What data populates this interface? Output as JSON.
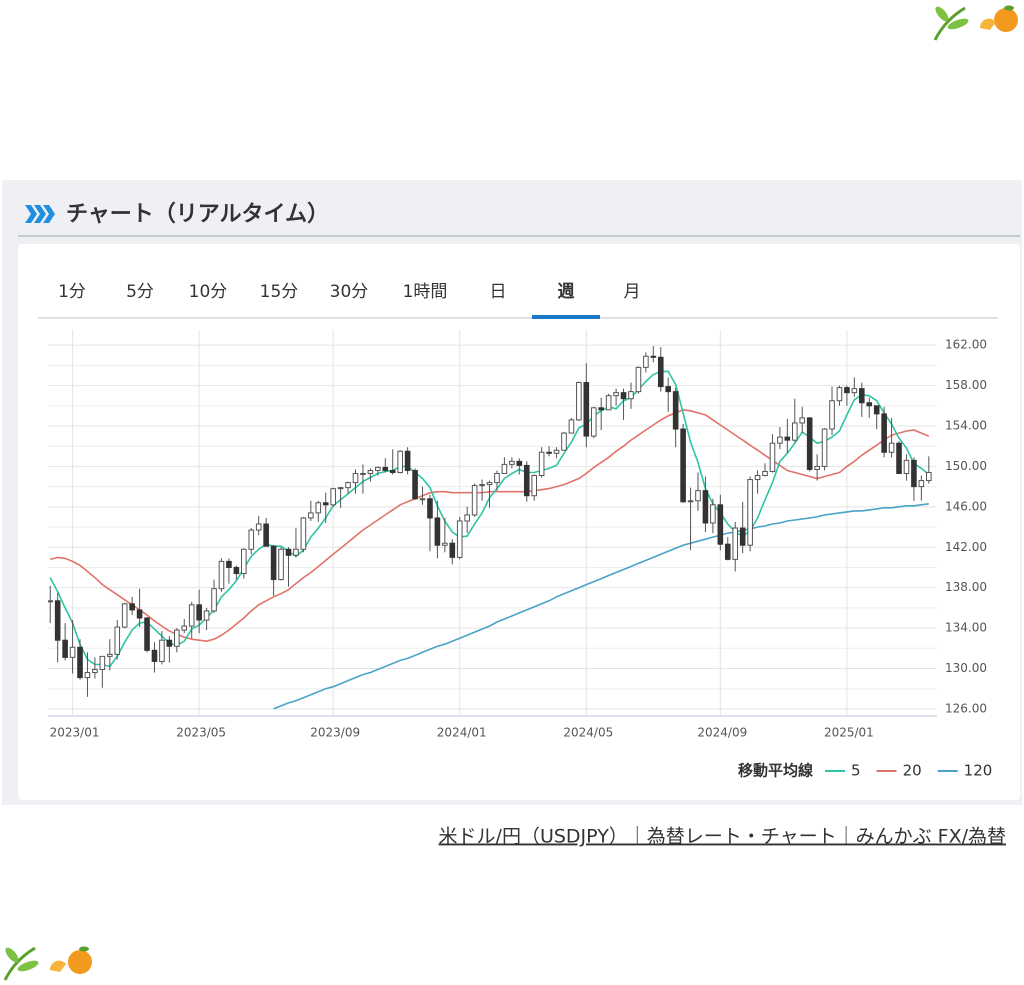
{
  "header": {
    "title": "チャート（リアルタイム）"
  },
  "tabs": {
    "items": [
      "1分",
      "5分",
      "10分",
      "15分",
      "30分",
      "1時間",
      "日",
      "週",
      "月"
    ],
    "active": 7
  },
  "chart_data": {
    "type": "candlestick",
    "open": [
      136.6,
      136.7,
      132.8,
      131.1,
      132.1,
      129.1,
      129.6,
      129.9,
      131.2,
      131.4,
      134.1,
      136.4,
      135.8,
      135.0,
      131.8,
      130.7,
      132.8,
      132.2,
      133.8,
      134.2,
      136.3,
      134.8,
      135.7,
      137.9,
      140.6,
      140.0,
      139.4,
      141.8,
      143.7,
      144.3,
      142.1,
      138.8,
      141.8,
      141.2,
      141.8,
      144.9,
      145.4,
      146.4,
      146.2,
      147.8,
      147.9,
      148.4,
      149.3,
      149.3,
      149.6,
      149.9,
      149.6,
      149.4,
      151.5,
      149.6,
      146.8,
      146.8,
      144.9,
      142.2,
      142.4,
      141.0,
      144.6,
      145.2,
      148.1,
      148.2,
      148.4,
      149.3,
      150.2,
      150.5,
      150.1,
      147.1,
      149.1,
      151.4,
      151.3,
      151.6,
      153.3,
      154.6,
      158.3,
      153.0,
      155.8,
      155.6,
      157.0,
      157.3,
      156.7,
      157.4,
      159.8,
      160.9,
      160.8,
      157.9,
      157.4,
      153.7,
      146.5,
      146.6,
      147.6,
      144.4,
      146.2,
      142.3,
      140.8,
      143.9,
      142.2,
      148.7,
      149.1,
      149.5,
      152.3,
      152.9,
      152.6,
      154.3,
      154.8,
      149.7,
      150.0,
      153.7,
      156.5,
      157.8,
      157.3,
      157.7,
      156.3,
      156.0,
      155.2,
      151.4,
      152.3,
      149.3,
      150.6,
      148.0,
      148.6
    ],
    "high": [
      138.2,
      137.5,
      134.5,
      134.8,
      132.9,
      131.6,
      131.1,
      131.2,
      132.9,
      134.8,
      136.5,
      137.1,
      137.9,
      135.1,
      132.6,
      133.7,
      133.2,
      134.0,
      134.9,
      136.6,
      137.8,
      136.0,
      138.8,
      140.9,
      140.9,
      140.2,
      141.9,
      143.9,
      145.1,
      144.9,
      142.2,
      142.0,
      142.0,
      143.9,
      145.0,
      146.6,
      146.6,
      147.4,
      147.9,
      147.9,
      148.5,
      149.7,
      150.2,
      149.8,
      150.0,
      150.8,
      151.7,
      151.6,
      151.9,
      149.8,
      148.0,
      147.2,
      146.6,
      144.9,
      142.8,
      145.0,
      146.0,
      148.3,
      148.7,
      148.6,
      149.6,
      150.9,
      150.9,
      150.8,
      150.5,
      149.2,
      151.9,
      152.0,
      151.9,
      153.4,
      154.8,
      158.4,
      160.2,
      155.9,
      156.8,
      157.2,
      157.7,
      157.7,
      158.3,
      159.9,
      161.3,
      161.9,
      161.8,
      158.8,
      157.8,
      154.2,
      147.9,
      149.4,
      149.0,
      146.8,
      147.2,
      143.0,
      144.5,
      146.5,
      149.0,
      149.6,
      150.3,
      153.2,
      153.9,
      154.7,
      156.7,
      155.9,
      154.9,
      151.2,
      153.8,
      157.9,
      158.0,
      158.0,
      158.8,
      158.3,
      156.8,
      156.0,
      155.9,
      154.8,
      152.5,
      151.2,
      150.9,
      149.1,
      151.0
    ],
    "low": [
      134.5,
      130.6,
      130.8,
      129.5,
      128.9,
      127.2,
      129.0,
      128.1,
      129.8,
      130.9,
      134.0,
      135.3,
      134.1,
      131.6,
      129.6,
      130.4,
      130.6,
      131.6,
      133.5,
      133.0,
      133.5,
      133.8,
      135.5,
      137.6,
      138.4,
      138.8,
      138.9,
      141.3,
      143.2,
      142.1,
      137.2,
      138.7,
      138.1,
      141.0,
      141.5,
      144.6,
      144.5,
      144.4,
      146.0,
      145.9,
      147.3,
      147.3,
      147.3,
      148.5,
      149.1,
      149.4,
      149.2,
      149.3,
      149.2,
      146.7,
      146.2,
      141.6,
      140.9,
      141.5,
      140.3,
      140.8,
      143.4,
      145.0,
      146.6,
      145.9,
      147.6,
      149.3,
      149.8,
      149.2,
      146.5,
      146.6,
      148.9,
      151.0,
      150.8,
      151.6,
      153.6,
      154.5,
      151.9,
      152.8,
      153.6,
      155.6,
      156.0,
      154.6,
      155.7,
      157.2,
      159.3,
      160.3,
      157.4,
      155.4,
      151.9,
      146.4,
      141.7,
      145.6,
      143.5,
      143.4,
      141.7,
      140.7,
      139.6,
      141.4,
      141.6,
      147.3,
      149.0,
      149.4,
      151.7,
      151.3,
      152.4,
      153.3,
      149.5,
      148.6,
      149.6,
      153.1,
      156.0,
      156.0,
      156.9,
      154.9,
      154.8,
      153.7,
      150.9,
      150.9,
      149.3,
      148.6,
      146.6,
      146.6,
      148.3
    ],
    "close": [
      136.7,
      132.8,
      131.1,
      132.1,
      129.1,
      129.6,
      129.9,
      131.2,
      131.4,
      134.1,
      136.4,
      135.8,
      135.0,
      131.8,
      130.7,
      132.8,
      132.2,
      133.8,
      134.2,
      136.3,
      134.8,
      135.7,
      137.9,
      140.6,
      140.0,
      139.4,
      141.8,
      143.7,
      144.3,
      142.1,
      138.8,
      141.8,
      141.2,
      141.8,
      144.9,
      145.4,
      146.4,
      146.2,
      147.8,
      147.9,
      148.4,
      149.3,
      149.3,
      149.6,
      149.9,
      149.6,
      149.4,
      151.5,
      149.6,
      146.8,
      146.8,
      144.9,
      142.2,
      142.4,
      141.0,
      144.6,
      145.2,
      148.1,
      148.2,
      148.4,
      149.3,
      150.2,
      150.5,
      150.1,
      147.1,
      149.1,
      151.4,
      151.3,
      151.6,
      153.3,
      154.6,
      158.3,
      153.0,
      155.8,
      155.6,
      157.0,
      157.3,
      156.7,
      157.4,
      159.8,
      160.9,
      160.8,
      157.9,
      157.4,
      153.7,
      146.5,
      146.6,
      147.6,
      144.4,
      146.2,
      142.3,
      140.8,
      143.9,
      142.2,
      148.7,
      149.1,
      149.5,
      152.3,
      152.9,
      152.6,
      154.3,
      154.8,
      149.7,
      150.0,
      153.7,
      156.5,
      157.8,
      157.3,
      157.7,
      156.3,
      156.0,
      155.2,
      151.4,
      152.3,
      149.3,
      150.6,
      148.0,
      148.6,
      149.4
    ],
    "legend_title": "移動平均線",
    "series": [
      {
        "name": "5",
        "color": "#2ec4a6",
        "values": [
          139.0,
          137.6,
          136.0,
          134.5,
          132.4,
          130.9,
          130.4,
          130.4,
          130.2,
          131.2,
          132.6,
          133.8,
          134.5,
          134.6,
          133.9,
          133.2,
          132.5,
          132.3,
          132.7,
          133.9,
          134.3,
          135.0,
          135.8,
          137.1,
          137.8,
          138.7,
          139.9,
          141.1,
          141.8,
          142.3,
          142.1,
          142.1,
          141.6,
          141.1,
          141.7,
          143.0,
          143.9,
          144.9,
          146.1,
          146.7,
          147.3,
          147.9,
          148.5,
          148.9,
          149.3,
          149.5,
          149.6,
          150.0,
          150.0,
          149.4,
          148.8,
          147.9,
          146.1,
          144.6,
          143.5,
          143.0,
          143.1,
          144.3,
          145.4,
          146.9,
          147.8,
          148.8,
          149.3,
          149.7,
          149.4,
          149.4,
          149.6,
          149.8,
          150.1,
          151.3,
          152.4,
          153.8,
          154.2,
          155.0,
          155.5,
          155.9,
          155.7,
          156.5,
          156.8,
          157.6,
          158.4,
          159.1,
          159.4,
          159.4,
          158.1,
          155.3,
          152.4,
          150.4,
          147.8,
          146.3,
          145.4,
          144.3,
          143.5,
          143.1,
          143.6,
          144.9,
          146.7,
          148.4,
          150.5,
          151.3,
          152.3,
          153.4,
          152.9,
          152.3,
          152.5,
          152.9,
          153.5,
          155.1,
          156.6,
          157.1,
          157.0,
          156.5,
          155.3,
          154.2,
          152.8,
          151.8,
          150.3,
          149.8,
          149.2
        ]
      },
      {
        "name": "20",
        "color": "#e0736a",
        "values": [
          140.8,
          141.0,
          140.9,
          140.6,
          140.2,
          139.6,
          139.0,
          138.3,
          137.8,
          137.3,
          136.8,
          136.3,
          135.8,
          135.3,
          134.7,
          134.2,
          133.7,
          133.4,
          133.1,
          132.9,
          132.8,
          132.7,
          132.9,
          133.3,
          133.8,
          134.4,
          135.0,
          135.7,
          136.3,
          136.7,
          137.1,
          137.4,
          137.8,
          138.4,
          139.0,
          139.5,
          140.1,
          140.7,
          141.3,
          141.9,
          142.5,
          143.1,
          143.7,
          144.2,
          144.7,
          145.2,
          145.7,
          146.2,
          146.5,
          146.8,
          147.1,
          147.4,
          147.5,
          147.5,
          147.4,
          147.4,
          147.4,
          147.4,
          147.4,
          147.5,
          147.5,
          147.5,
          147.5,
          147.5,
          147.5,
          147.6,
          147.7,
          147.8,
          148.0,
          148.2,
          148.5,
          148.8,
          149.3,
          149.9,
          150.4,
          150.9,
          151.5,
          152.0,
          152.6,
          153.1,
          153.6,
          154.1,
          154.6,
          155.0,
          155.3,
          155.6,
          155.5,
          155.3,
          155.1,
          154.6,
          154.1,
          153.6,
          153.1,
          152.6,
          152.1,
          151.6,
          151.1,
          150.6,
          150.1,
          149.6,
          149.4,
          149.2,
          149.0,
          148.8,
          149.0,
          149.2,
          149.4,
          150.0,
          150.5,
          151.1,
          151.6,
          152.1,
          152.6,
          153.1,
          153.3,
          153.5,
          153.6,
          153.3,
          153.0
        ]
      },
      {
        "name": "120",
        "color": "#4aa3c8",
        "values": [
          null,
          null,
          null,
          null,
          null,
          null,
          null,
          null,
          null,
          null,
          null,
          null,
          null,
          null,
          null,
          null,
          null,
          null,
          null,
          null,
          null,
          null,
          null,
          null,
          null,
          null,
          null,
          null,
          null,
          null,
          126.0,
          126.3,
          126.6,
          126.8,
          127.1,
          127.4,
          127.7,
          128.0,
          128.2,
          128.5,
          128.8,
          129.1,
          129.4,
          129.6,
          129.9,
          130.2,
          130.5,
          130.8,
          131.0,
          131.3,
          131.6,
          131.9,
          132.2,
          132.4,
          132.7,
          133.0,
          133.3,
          133.6,
          133.9,
          134.2,
          134.6,
          134.9,
          135.2,
          135.5,
          135.8,
          136.1,
          136.4,
          136.7,
          137.1,
          137.4,
          137.7,
          138.0,
          138.3,
          138.6,
          138.9,
          139.2,
          139.5,
          139.8,
          140.1,
          140.4,
          140.7,
          141.0,
          141.3,
          141.6,
          141.9,
          142.2,
          142.4,
          142.6,
          142.8,
          143.0,
          143.2,
          143.4,
          143.5,
          143.7,
          143.8,
          144.0,
          144.1,
          144.3,
          144.4,
          144.6,
          144.7,
          144.8,
          144.9,
          145.0,
          145.2,
          145.3,
          145.4,
          145.5,
          145.6,
          145.6,
          145.7,
          145.8,
          145.9,
          145.9,
          146.0,
          146.1,
          146.1,
          146.2,
          146.3
        ]
      }
    ],
    "up_color": "#ffffff",
    "down_color": "#333333",
    "wick_color": "#555555",
    "xlim": [
      -0.3,
      119.1
    ],
    "xticks": [
      {
        "value": 3,
        "label": "2023/01"
      },
      {
        "value": 20,
        "label": "2023/05"
      },
      {
        "value": 38,
        "label": "2023/09"
      },
      {
        "value": 55,
        "label": "2024/01"
      },
      {
        "value": 72,
        "label": "2024/05"
      },
      {
        "value": 90,
        "label": "2024/09"
      },
      {
        "value": 107,
        "label": "2025/01"
      }
    ],
    "ylim": [
      125.3,
      163.5
    ],
    "yticks": [
      {
        "value": 126,
        "label": "126.00"
      },
      {
        "value": 130,
        "label": "130.00"
      },
      {
        "value": 134,
        "label": "134.00"
      },
      {
        "value": 138,
        "label": "138.00"
      },
      {
        "value": 142,
        "label": "142.00"
      },
      {
        "value": 146,
        "label": "146.00"
      },
      {
        "value": 150,
        "label": "150.00"
      },
      {
        "value": 154,
        "label": "154.00"
      },
      {
        "value": 158,
        "label": "158.00"
      },
      {
        "value": 162,
        "label": "162.00"
      }
    ],
    "minor_yticks": [
      128,
      132,
      136,
      140,
      144,
      148,
      152,
      156,
      160
    ],
    "grid": true
  },
  "footer_link": {
    "text": "米ドル/円（USDJPY）｜為替レート・チャート｜みんかぶ FX/為替"
  }
}
